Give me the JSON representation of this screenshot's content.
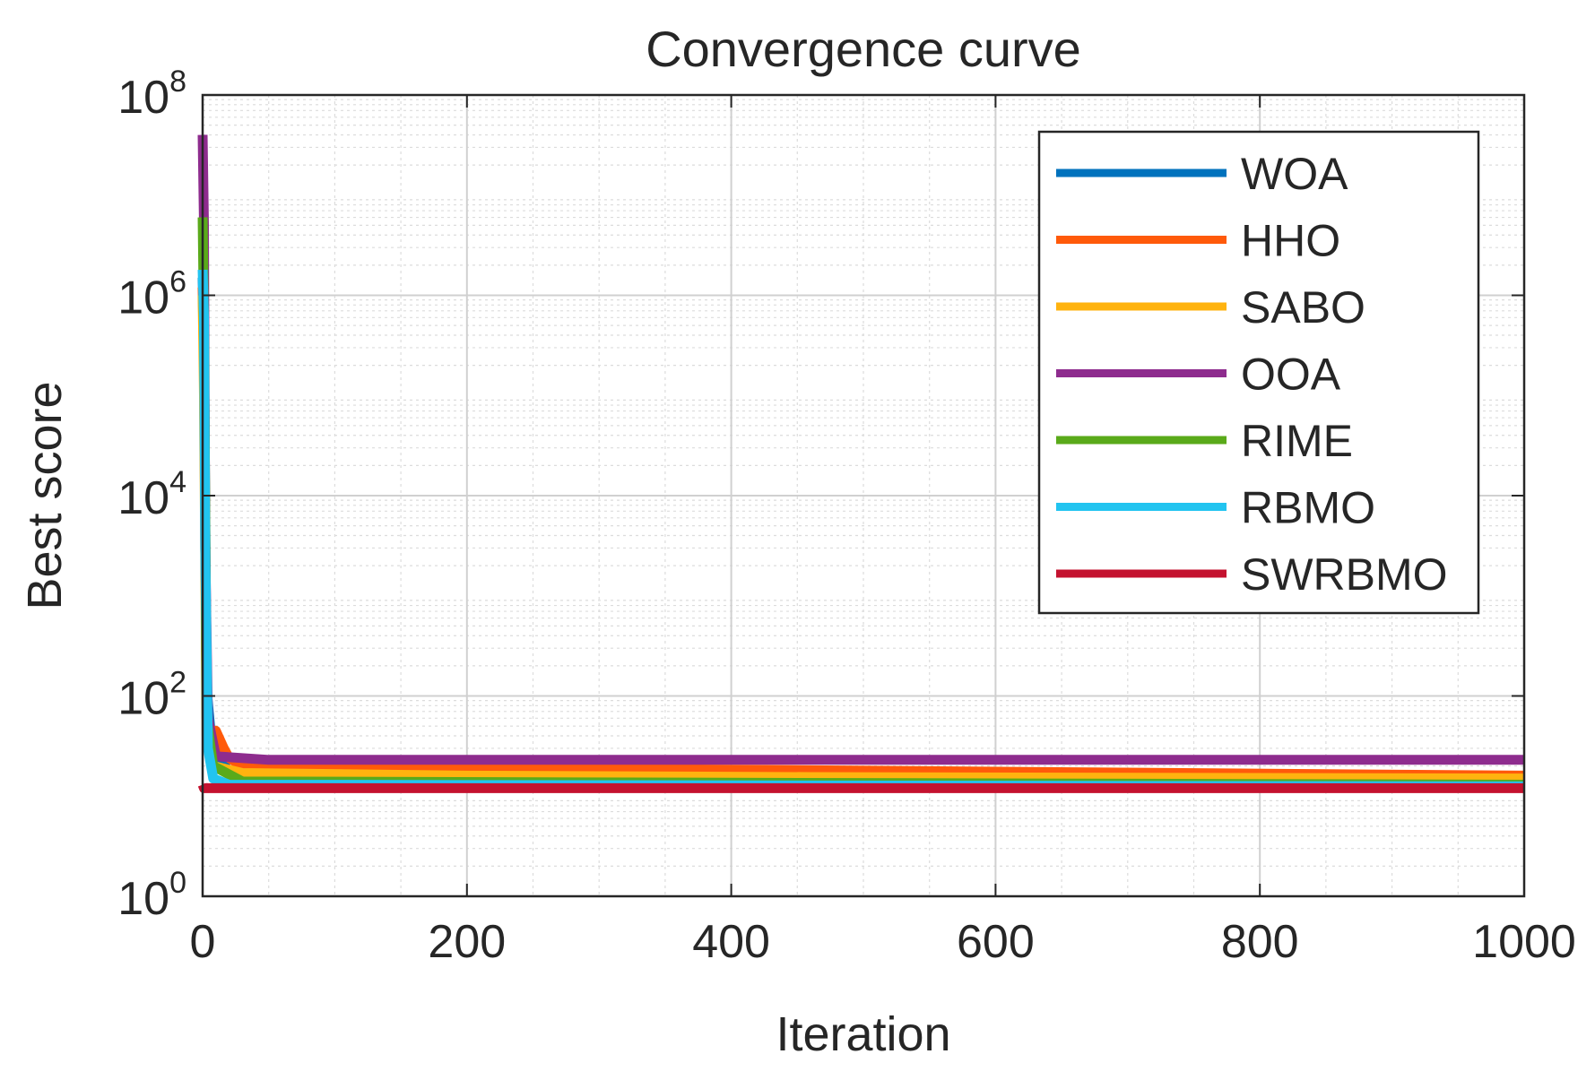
{
  "chart_data": {
    "type": "line",
    "title": "Convergence curve",
    "xlabel": "Iteration",
    "ylabel": "Best score",
    "xlim": [
      0,
      1000
    ],
    "ylim": [
      1,
      100000000
    ],
    "yscale": "log",
    "grid": true,
    "minor_grid": true,
    "legend_position": "top-right",
    "x_ticks": [
      0,
      200,
      400,
      600,
      800,
      1000
    ],
    "x_tick_labels": [
      "0",
      "200",
      "400",
      "600",
      "800",
      "1000"
    ],
    "y_ticks": [
      1,
      100,
      10000,
      1000000,
      100000000
    ],
    "y_tick_labels": [
      {
        "base": "10",
        "exp": "0"
      },
      {
        "base": "10",
        "exp": "2"
      },
      {
        "base": "10",
        "exp": "4"
      },
      {
        "base": "10",
        "exp": "6"
      },
      {
        "base": "10",
        "exp": "8"
      }
    ],
    "series": [
      {
        "name": "WOA",
        "color": "#0072BD",
        "x": [
          0,
          1,
          3,
          6,
          10,
          20,
          50,
          1000
        ],
        "y": [
          1500000,
          400000,
          120,
          45,
          30,
          17,
          15,
          14
        ]
      },
      {
        "name": "HHO",
        "color": "#FF5A0A",
        "x": [
          0,
          1,
          3,
          6,
          10,
          16,
          20,
          30,
          1000
        ],
        "y": [
          1200000,
          200000,
          80,
          35,
          45,
          30,
          24,
          20,
          16
        ]
      },
      {
        "name": "SABO",
        "color": "#FFB30F",
        "x": [
          0,
          1,
          3,
          8,
          30,
          200,
          460,
          1000
        ],
        "y": [
          1000000,
          100000,
          40,
          20,
          17,
          16,
          15.5,
          15
        ]
      },
      {
        "name": "OOA",
        "color": "#8E2C8E",
        "x": [
          0,
          1,
          2,
          4,
          10,
          50,
          1000
        ],
        "y": [
          40000000,
          5000000,
          3000,
          60,
          25,
          23,
          23
        ]
      },
      {
        "name": "RIME",
        "color": "#5AAA1A",
        "x": [
          0,
          1,
          3,
          8,
          30,
          1000
        ],
        "y": [
          6000000,
          500000,
          60,
          20,
          14,
          13
        ]
      },
      {
        "name": "RBMO",
        "color": "#22C4F0",
        "x": [
          0,
          1,
          2,
          4,
          8,
          20,
          1000
        ],
        "y": [
          1800000,
          600000,
          3000,
          30,
          15,
          13,
          12.5
        ]
      },
      {
        "name": "SWRBMO",
        "color": "#C4122F",
        "x": [
          0,
          1,
          2,
          5,
          1000
        ],
        "y": [
          13,
          12,
          12,
          12,
          12
        ]
      }
    ]
  }
}
